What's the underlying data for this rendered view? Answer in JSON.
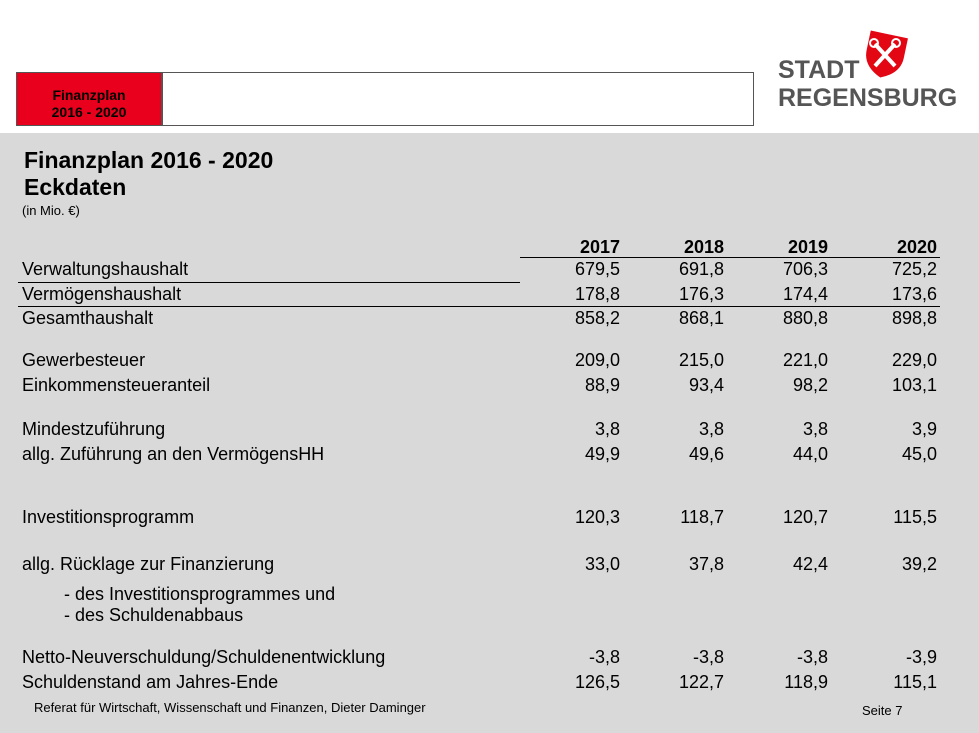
{
  "header": {
    "tab_title": [
      "Finanzplan",
      "2016 - 2020"
    ],
    "logo": [
      "STADT",
      "REGENSBURG"
    ]
  },
  "slide": {
    "title": "Finanzplan 2016 - 2020",
    "subtitle": "Eckdaten",
    "unit": "(in Mio. €)"
  },
  "table": {
    "columns": [
      "2017",
      "2018",
      "2019",
      "2020"
    ],
    "rows": [
      {
        "label": "Verwaltungshaushalt",
        "values": [
          "679,5",
          "691,8",
          "706,3",
          "725,2"
        ]
      },
      {
        "label": "Vermögenshaushalt",
        "values": [
          "178,8",
          "176,3",
          "174,4",
          "173,6"
        ]
      },
      {
        "label": "Gesamthaushalt",
        "values": [
          "858,2",
          "868,1",
          "880,8",
          "898,8"
        ]
      },
      {
        "label": "Gewerbesteuer",
        "values": [
          "209,0",
          "215,0",
          "221,0",
          "229,0"
        ]
      },
      {
        "label": "Einkommensteueranteil",
        "values": [
          "88,9",
          "93,4",
          "98,2",
          "103,1"
        ]
      },
      {
        "label": "Mindestzuführung",
        "values": [
          "3,8",
          "3,8",
          "3,8",
          "3,9"
        ]
      },
      {
        "label": "allg. Zuführung an den VermögensHH",
        "values": [
          "49,9",
          "49,6",
          "44,0",
          "45,0"
        ]
      },
      {
        "label": "Investitionsprogramm",
        "values": [
          "120,3",
          "118,7",
          "120,7",
          "115,5"
        ]
      },
      {
        "label": "allg. Rücklage zur Finanzierung",
        "values": [
          "33,0",
          "37,8",
          "42,4",
          "39,2"
        ]
      },
      {
        "label": "- des Investitionsprogrammes und"
      },
      {
        "label": "- des Schuldenabbaus"
      },
      {
        "label": "Netto-Neuverschuldung/Schuldenentwicklung",
        "values": [
          "-3,8",
          "-3,8",
          "-3,8",
          "-3,9"
        ]
      },
      {
        "label": "Schuldenstand am Jahres-Ende",
        "values": [
          "126,5",
          "122,7",
          "118,9",
          "115,1"
        ]
      }
    ]
  },
  "footer": {
    "text": "Referat für Wirtschaft, Wissenschaft und Finanzen, Dieter Daminger",
    "page": "Seite 7"
  }
}
